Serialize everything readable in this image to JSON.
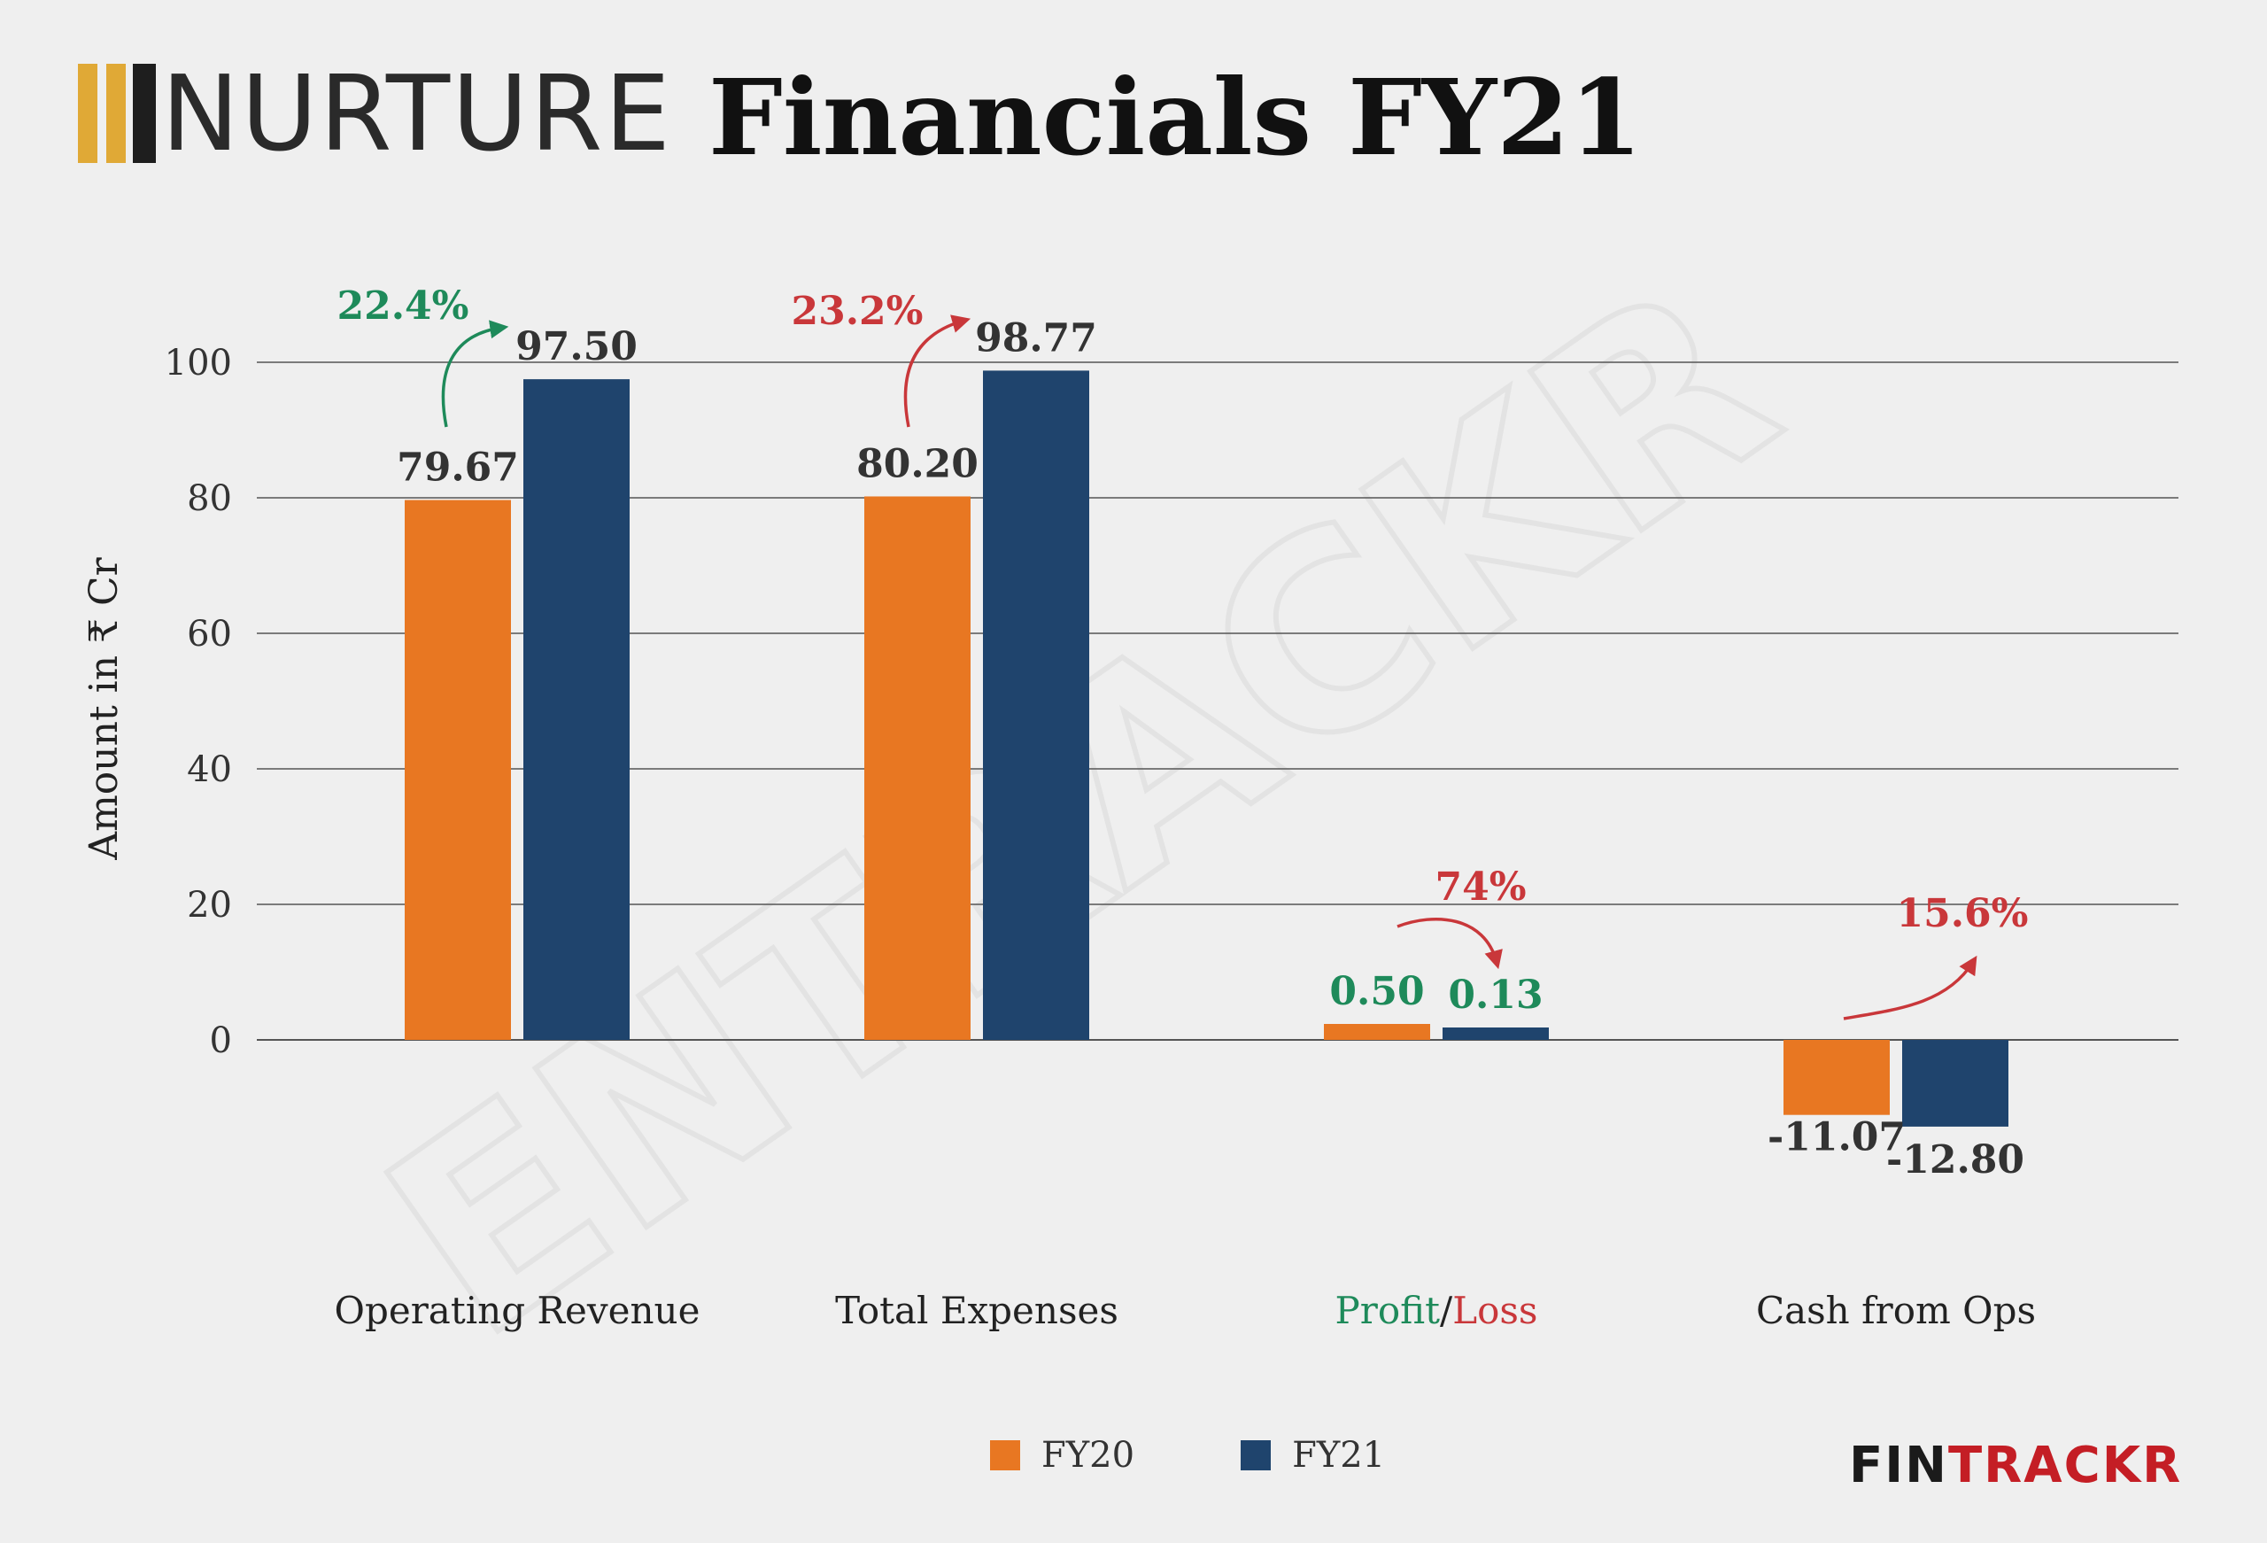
{
  "brand": {
    "company_logo_text": "NURTURE",
    "watermark": "ENTRACKR",
    "footer_brand_part1": "FIN",
    "footer_brand_part2": "TRACKR"
  },
  "title": "Financials FY21",
  "legend": [
    {
      "label": "FY20",
      "color": "#e87722"
    },
    {
      "label": "FY21",
      "color": "#1f446d"
    }
  ],
  "colors": {
    "fy20": "#e87722",
    "fy21": "#1f446d",
    "positive": "#1e8a5a",
    "negative": "#c9373a",
    "gridline": "#555555"
  },
  "chart_data": {
    "type": "bar",
    "ylabel": "Amount in ₹ Cr",
    "ylim": [
      -30,
      110
    ],
    "yticks": [
      0,
      20,
      40,
      60,
      80,
      100
    ],
    "grid": true,
    "legend_position": "bottom",
    "categories": [
      "Operating Revenue",
      "Total Expenses",
      "Profit/Loss",
      "Cash from Ops"
    ],
    "series": [
      {
        "name": "FY20",
        "values": [
          79.67,
          80.2,
          0.5,
          -11.07
        ],
        "labels": [
          "79.67",
          "80.20",
          "0.50",
          "-11.07"
        ]
      },
      {
        "name": "FY21",
        "values": [
          97.5,
          98.77,
          0.13,
          -12.8
        ],
        "labels": [
          "97.50",
          "98.77",
          "0.13",
          "-12.80"
        ]
      }
    ],
    "annotations": [
      {
        "category": "Operating Revenue",
        "text": "22.4%",
        "tone": "positive"
      },
      {
        "category": "Total Expenses",
        "text": "23.2%",
        "tone": "negative"
      },
      {
        "category": "Profit/Loss",
        "text": "74%",
        "tone": "negative"
      },
      {
        "category": "Cash from Ops",
        "text": "15.6%",
        "tone": "negative"
      }
    ],
    "category_label_parts": {
      "Profit/Loss": [
        {
          "text": "Profit",
          "tone": "positive"
        },
        {
          "text": "/",
          "tone": "neutral"
        },
        {
          "text": "Loss",
          "tone": "negative"
        }
      ]
    }
  }
}
